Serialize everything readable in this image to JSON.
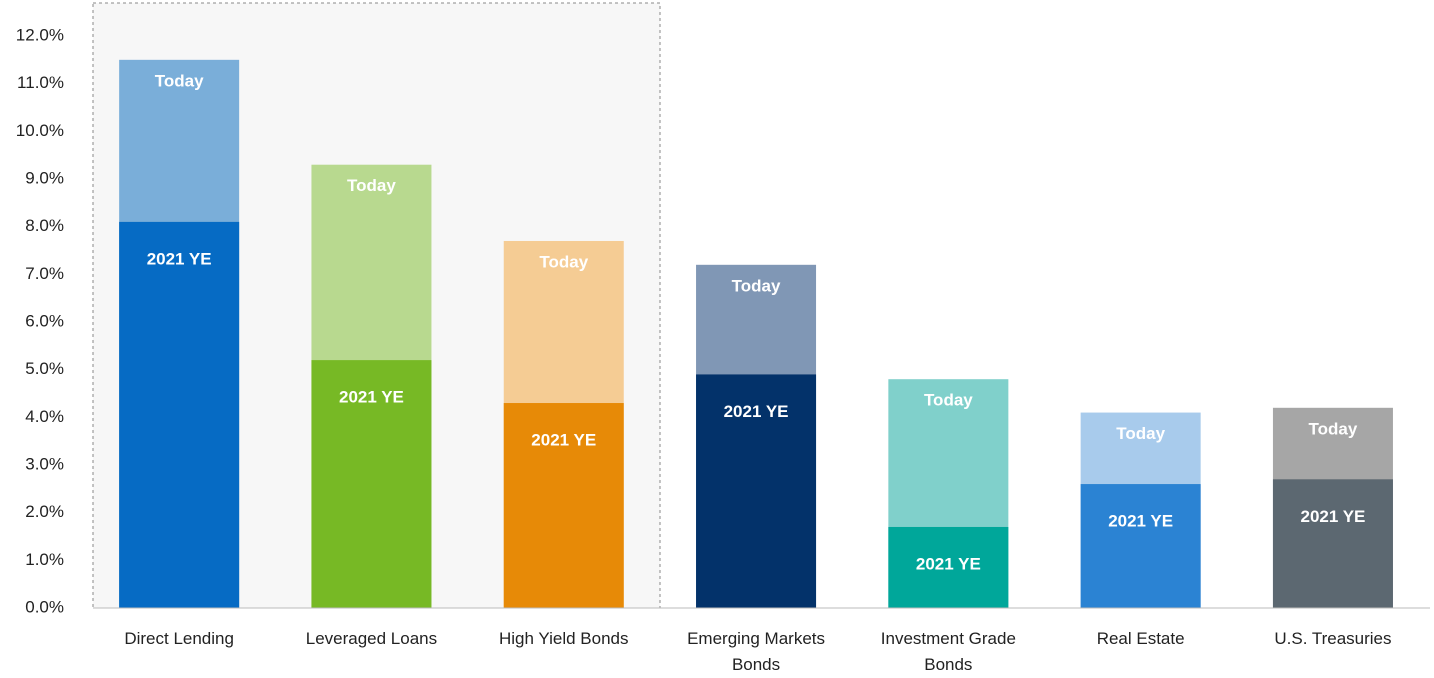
{
  "chart_data": {
    "type": "bar",
    "categories": [
      "Direct Lending",
      "Leveraged Loans",
      "High Yield Bonds",
      "Emerging Markets Bonds",
      "Investment Grade Bonds",
      "Real Estate",
      "U.S. Treasuries"
    ],
    "series": [
      {
        "name": "Today",
        "colors": [
          "#7aaed9",
          "#b8d98f",
          "#f5cc94",
          "#8097b5",
          "#80d0cb",
          "#a8cbec",
          "#a6a6a6"
        ],
        "values": [
          11.5,
          9.3,
          7.7,
          7.2,
          4.8,
          4.1,
          4.2
        ]
      },
      {
        "name": "2021 YE",
        "colors": [
          "#066bc4",
          "#77b925",
          "#e78a07",
          "#03326a",
          "#00a79a",
          "#2b83d3",
          "#5c6871"
        ],
        "values": [
          8.1,
          5.2,
          4.3,
          4.9,
          1.7,
          2.6,
          2.7
        ]
      }
    ],
    "overlay": true,
    "ylim": [
      0,
      12
    ],
    "yticks": [
      {
        "value": 0,
        "label": "0.0%"
      },
      {
        "value": 1,
        "label": "1.0%"
      },
      {
        "value": 2,
        "label": "2.0%"
      },
      {
        "value": 3,
        "label": "3.0%"
      },
      {
        "value": 4,
        "label": "4.0%"
      },
      {
        "value": 5,
        "label": "5.0%"
      },
      {
        "value": 6,
        "label": "6.0%"
      },
      {
        "value": 7,
        "label": "7.0%"
      },
      {
        "value": 8,
        "label": "8.0%"
      },
      {
        "value": 9,
        "label": "9.0%"
      },
      {
        "value": 10,
        "label": "10.0%"
      },
      {
        "value": 11,
        "label": "11.0%"
      },
      {
        "value": 12,
        "label": "12.0%"
      }
    ],
    "grid": false
  }
}
